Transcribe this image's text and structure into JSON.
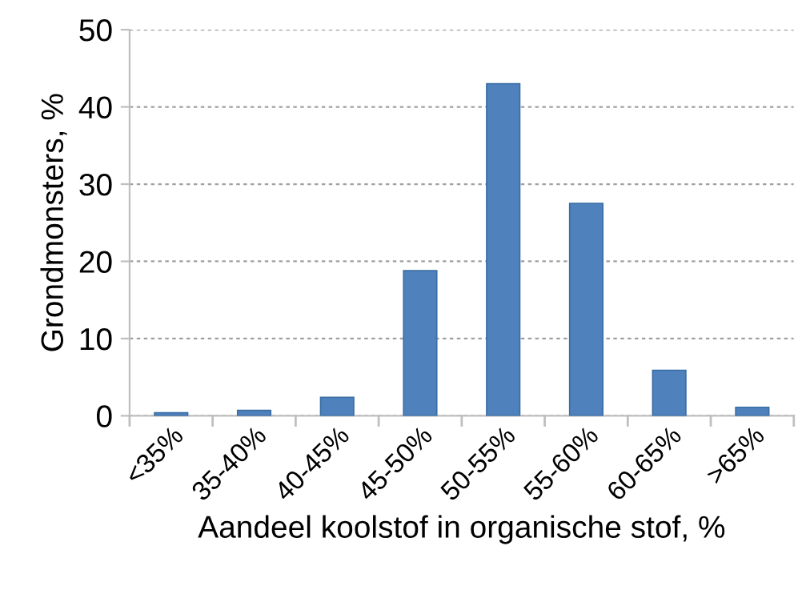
{
  "chart_data": {
    "type": "bar",
    "xlabel": "Aandeel koolstof in organische stof, %",
    "ylabel": "Grondmonsters, %",
    "categories": [
      "<35%",
      "35-40%",
      "40-45%",
      "45-50%",
      "50-55%",
      "55-60%",
      "60-65%",
      ">65%"
    ],
    "values": [
      0.4,
      0.7,
      2.4,
      18.8,
      43,
      27.5,
      5.9,
      1.1
    ],
    "color": "#4f81bd",
    "ylim": [
      0,
      50
    ],
    "yticks": [
      0,
      10,
      20,
      30,
      40,
      50
    ],
    "grid": "y"
  }
}
